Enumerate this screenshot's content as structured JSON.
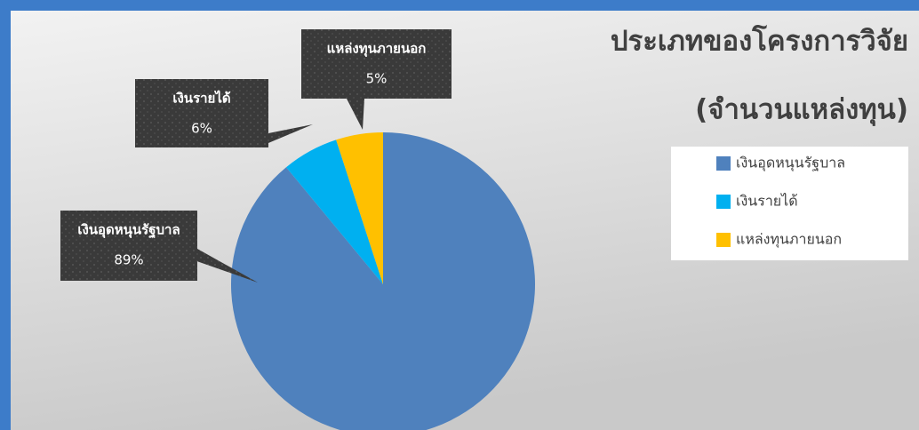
{
  "chart_data": {
    "type": "pie",
    "title": "ประเภทของโครงการวิจัย",
    "subtitle": "(จำนวนแหล่งทุน)",
    "categories": [
      "เงินอุดหนุนรัฐบาล",
      "เงินรายได้",
      "แหล่งทุนภายนอก"
    ],
    "values": [
      89,
      6,
      5
    ],
    "value_labels": [
      "89%",
      "6%",
      "5%"
    ],
    "colors": [
      "#4f81bd",
      "#00b0f0",
      "#ffc000"
    ],
    "legend": "right"
  }
}
